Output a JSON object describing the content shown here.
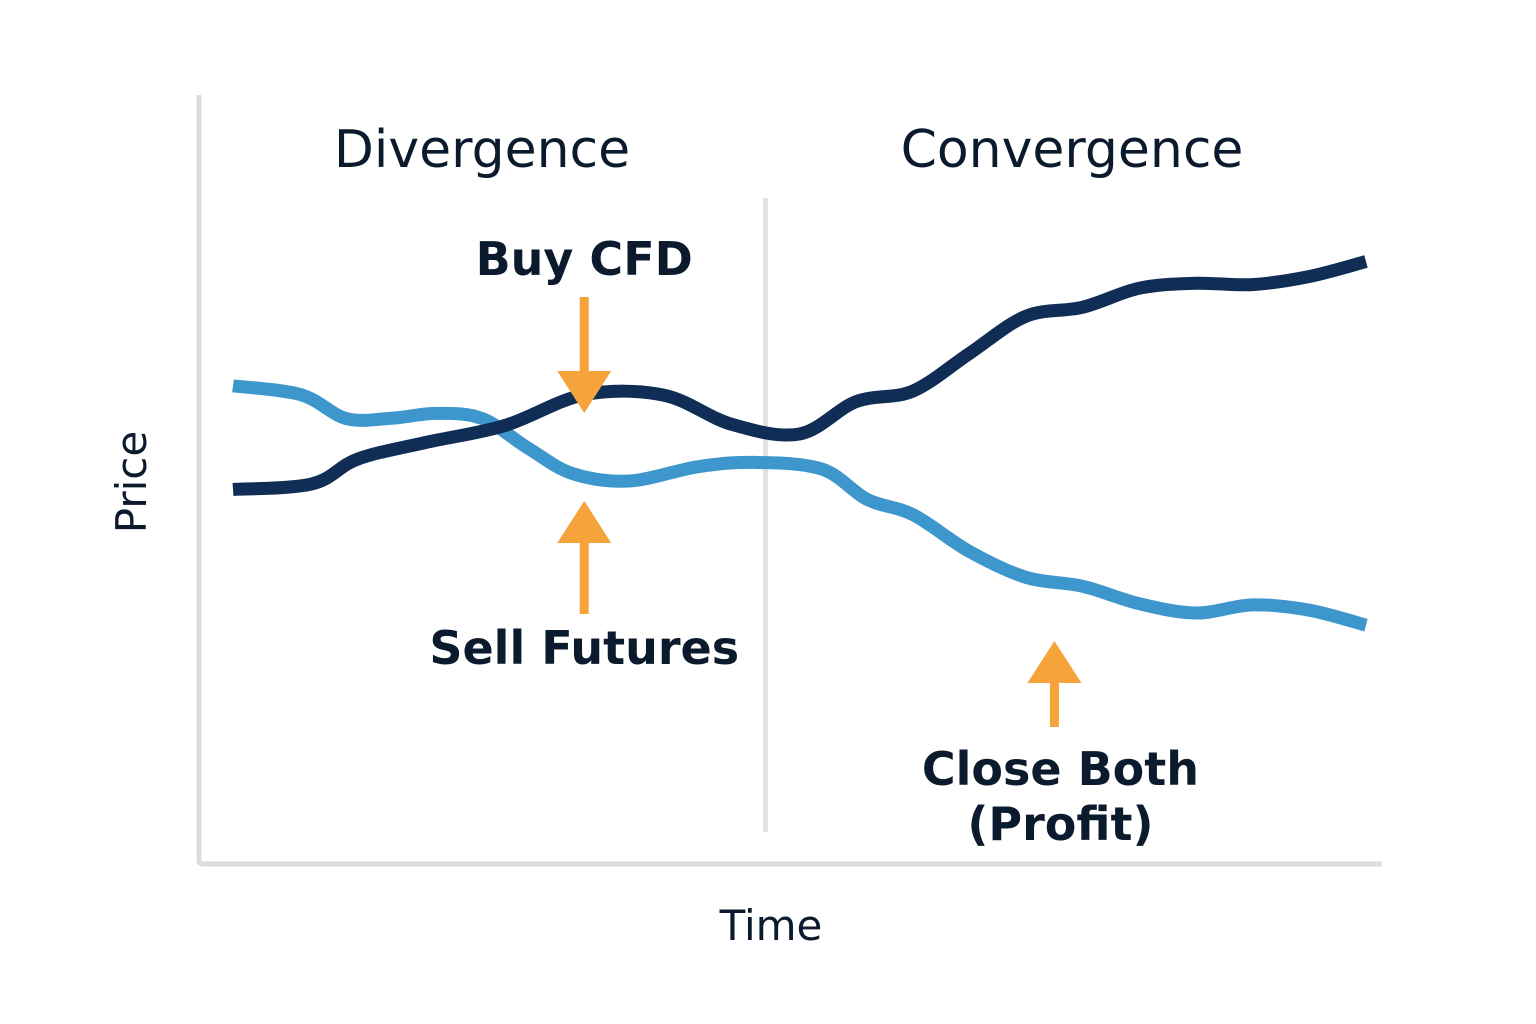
{
  "chart_data": {
    "type": "line",
    "title": "",
    "xlabel": "Time",
    "ylabel": "Price",
    "grid": false,
    "legend": "none",
    "xlim": [
      0,
      100
    ],
    "ylim": [
      0,
      100
    ],
    "phases": [
      {
        "label": "Divergence",
        "start": 0,
        "end": 47
      },
      {
        "label": "Convergence",
        "start": 47,
        "end": 100
      }
    ],
    "series": [
      {
        "color": "#0f2d55",
        "x": [
          0,
          7,
          11,
          17,
          24,
          31,
          38,
          44,
          50,
          55,
          60,
          65,
          70,
          75,
          80,
          85,
          90,
          95,
          100
        ],
        "y": [
          42.1,
          43.5,
          49.6,
          53.7,
          57.9,
          65.5,
          65.4,
          58.2,
          55.8,
          63.8,
          66.4,
          75.7,
          84.9,
          87.1,
          91.8,
          93.0,
          92.7,
          94.7,
          98.4
        ]
      },
      {
        "color": "#3d96cc",
        "x": [
          0,
          6,
          10,
          14,
          18,
          22,
          26,
          30,
          35,
          41,
          46,
          52,
          56,
          60,
          65,
          70,
          75,
          80,
          85,
          90,
          95,
          100
        ],
        "y": [
          67.7,
          65.5,
          59.6,
          59.7,
          60.9,
          59.6,
          52.4,
          46.0,
          44.2,
          47.7,
          48.8,
          47.1,
          39.6,
          35.9,
          26.8,
          20.4,
          18.2,
          13.9,
          11.6,
          13.6,
          12.3,
          8.6
        ]
      }
    ],
    "annotations": [
      {
        "text": "Buy CFD",
        "x": 31,
        "y": 64,
        "arrow": "down",
        "color": "#f5a33a"
      },
      {
        "text": "Sell Futures",
        "x": 31,
        "y": 45,
        "arrow": "up",
        "color": "#f5a33a"
      },
      {
        "text": "Close Both (Profit)",
        "lines": [
          "Close Both",
          "(Profit)"
        ],
        "x": 72.5,
        "y": 21,
        "arrow": "up",
        "color": "#f5a33a"
      }
    ],
    "axis_color": "#dcdcdc",
    "divider_color": "#e2e2e2"
  }
}
